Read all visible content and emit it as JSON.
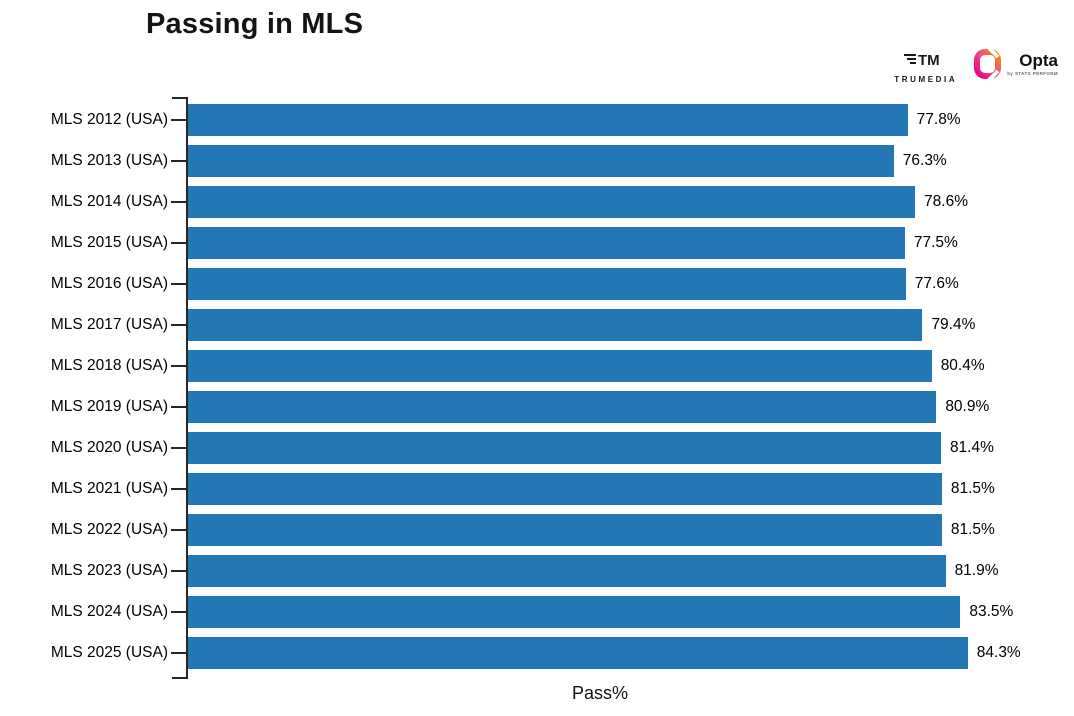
{
  "header": {
    "title": "Passing in MLS"
  },
  "branding": {
    "trumedia_label": "TRUMEDIA",
    "trumedia_mark": "TM",
    "opta_label": "Opta",
    "opta_sub_label": "by STATS PERFORM"
  },
  "chart_data": {
    "type": "bar",
    "orientation": "horizontal",
    "title": "Passing in MLS",
    "xlabel": "Pass%",
    "ylabel": "",
    "categories": [
      "MLS 2012 (USA)",
      "MLS 2013 (USA)",
      "MLS 2014 (USA)",
      "MLS 2015 (USA)",
      "MLS 2016 (USA)",
      "MLS 2017 (USA)",
      "MLS 2018 (USA)",
      "MLS 2019 (USA)",
      "MLS 2020 (USA)",
      "MLS 2021 (USA)",
      "MLS 2022 (USA)",
      "MLS 2023 (USA)",
      "MLS 2024 (USA)",
      "MLS 2025 (USA)"
    ],
    "values": [
      77.8,
      76.3,
      78.6,
      77.5,
      77.6,
      79.4,
      80.4,
      80.9,
      81.4,
      81.5,
      81.5,
      81.9,
      83.5,
      84.3
    ],
    "value_labels": [
      "77.8%",
      "76.3%",
      "78.6%",
      "77.5%",
      "77.6%",
      "79.4%",
      "80.4%",
      "80.9%",
      "81.4%",
      "81.5%",
      "81.5%",
      "81.9%",
      "83.5%",
      "84.3%"
    ],
    "xlim": [
      0,
      95.8
    ],
    "grid": false,
    "legend": "none",
    "bar_color": "#2277b4",
    "axis_color": "#262626",
    "text_color": "#000000"
  }
}
